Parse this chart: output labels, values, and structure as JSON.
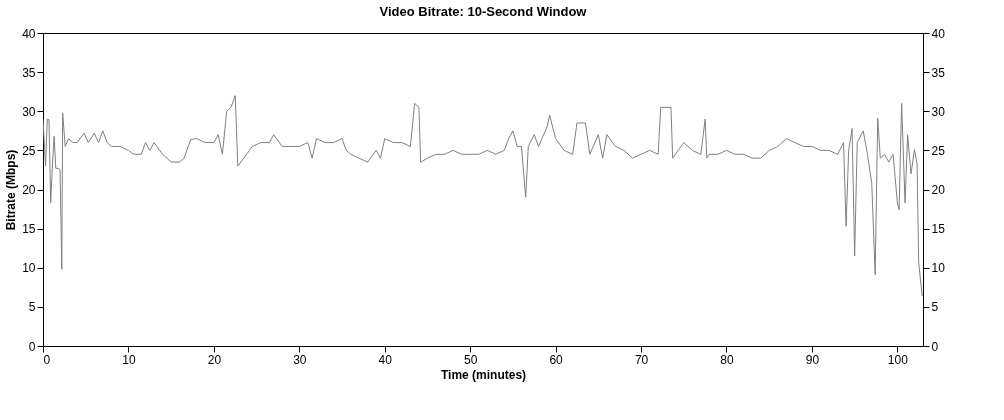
{
  "chart_data": {
    "type": "line",
    "title": "Video Bitrate: 10-Second Window",
    "xlabel": "Time (minutes)",
    "ylabel": "Bitrate (Mbps)",
    "xlim": [
      0,
      103
    ],
    "xticks": [
      0,
      10,
      20,
      30,
      40,
      50,
      60,
      70,
      80,
      90,
      100
    ],
    "ylim": [
      0,
      40
    ],
    "yticks": [
      0,
      5,
      10,
      15,
      20,
      25,
      30,
      35,
      40
    ],
    "y2lim": [
      0,
      40
    ],
    "y2ticks": [
      0,
      5,
      10,
      15,
      20,
      25,
      30,
      35,
      40
    ],
    "grid": false,
    "marker": "none",
    "line_style": "solid",
    "series": [
      {
        "color": "#808080",
        "x": [
          0,
          0.3,
          0.5,
          0.7,
          0.9,
          1.1,
          1.3,
          1.5,
          1.8,
          2.0,
          2.2,
          2.3,
          2.6,
          3,
          3.5,
          4,
          4.8,
          5.3,
          6,
          6.5,
          7,
          7.5,
          8,
          9,
          10,
          10.6,
          11.5,
          12,
          12.5,
          13,
          14,
          15,
          16,
          16.5,
          17.3,
          18,
          19,
          20,
          20.5,
          21,
          21.5,
          22,
          22.5,
          22.8,
          23.5,
          24.5,
          25.5,
          26.5,
          27,
          28,
          29,
          30,
          31,
          31.5,
          32,
          33,
          34,
          35,
          35.5,
          36,
          37,
          38,
          39,
          39.5,
          40,
          41,
          42,
          43,
          43.5,
          44,
          44.2,
          45,
          46,
          47,
          48,
          49,
          50,
          51,
          52,
          53,
          54,
          54.5,
          55,
          55.5,
          56,
          56.5,
          56.8,
          57.5,
          58,
          59,
          59.3,
          60,
          61,
          62,
          62.5,
          63.5,
          64,
          65,
          65.5,
          66,
          67,
          68,
          69,
          70,
          71,
          72,
          72.3,
          73.5,
          73.7,
          75,
          76,
          77,
          77.5,
          77.7,
          78,
          79,
          80,
          81,
          82,
          83,
          84,
          85,
          86,
          87,
          88,
          89,
          90,
          91,
          92,
          93,
          93.7,
          94.0,
          94.3,
          94.7,
          95.0,
          95.3,
          96,
          96.5,
          97.0,
          97.4,
          97.7,
          98,
          98.5,
          99,
          99.5,
          100,
          100.2,
          100.5,
          100.9,
          101.2,
          101.6,
          102,
          102.3,
          102.5,
          102.9
        ],
        "values": [
          29,
          23,
          29,
          28.9,
          18.3,
          23,
          26.8,
          22.7,
          22.7,
          22.5,
          9.8,
          29.8,
          25.5,
          26.5,
          26,
          26,
          27.2,
          26,
          27.2,
          26,
          27.5,
          26,
          25.5,
          25.5,
          25,
          24.5,
          24.5,
          26,
          25,
          26,
          24.5,
          23.5,
          23.5,
          24,
          26.4,
          26.5,
          26,
          26,
          27,
          24.5,
          30,
          30.5,
          32,
          23,
          24,
          25.5,
          26,
          26,
          27,
          25.5,
          25.5,
          25.5,
          26,
          24,
          26.5,
          26,
          26,
          26.5,
          25,
          24.5,
          24,
          23.5,
          25,
          24,
          26.5,
          26,
          26,
          25.5,
          31,
          30.5,
          23.5,
          24,
          24.5,
          24.5,
          25,
          24.5,
          24.5,
          24.5,
          25,
          24.5,
          25,
          26.5,
          27.5,
          25.5,
          25.5,
          19,
          25.5,
          27,
          25.5,
          28,
          29.5,
          26.5,
          25,
          24.5,
          28.5,
          28.5,
          24.5,
          27,
          24,
          27,
          25.5,
          25,
          24,
          24.5,
          25,
          24.5,
          30.5,
          30.5,
          24,
          26,
          25,
          24.5,
          29,
          24,
          24.5,
          24.5,
          25,
          24.5,
          24.5,
          24,
          24,
          25,
          25.5,
          26.5,
          26,
          25.5,
          25.5,
          25,
          25,
          24.5,
          26,
          15.3,
          25,
          27.8,
          11.5,
          26,
          27.5,
          24.5,
          20.8,
          9.1,
          29.1,
          24,
          24.5,
          23.5,
          24.5,
          18.3,
          17.4,
          31,
          18.3,
          27,
          22,
          25.1,
          23.3,
          10.6,
          6.4
        ]
      }
    ]
  }
}
